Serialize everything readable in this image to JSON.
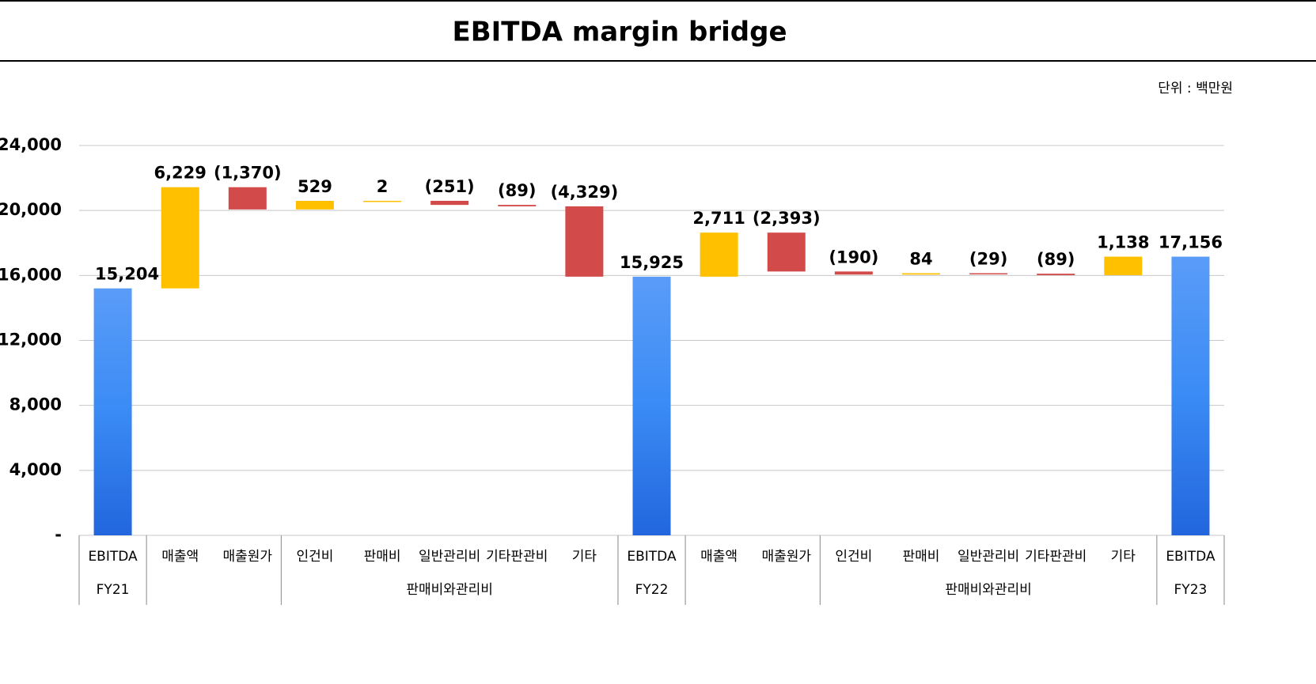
{
  "chart_data": {
    "type": "waterfall",
    "title": "EBITDA margin bridge",
    "unit_note": "단위 : 백만원",
    "categories": [
      "EBITDA",
      "매출액",
      "매출원가",
      "인건비",
      "판매비",
      "일반관리비",
      "기타판관비",
      "기타",
      "EBITDA",
      "매출액",
      "매출원가",
      "인건비",
      "판매비",
      "일반관리비",
      "기타판관비",
      "기타",
      "EBITDA"
    ],
    "groups": [
      {
        "label": "FY21",
        "categories": [
          0,
          0
        ]
      },
      {
        "label": null,
        "categories": [
          1,
          2
        ]
      },
      {
        "label": "판매비와관리비",
        "categories": [
          3,
          7
        ]
      },
      {
        "label": "FY22",
        "categories": [
          8,
          8
        ]
      },
      {
        "label": null,
        "categories": [
          9,
          10
        ]
      },
      {
        "label": "판매비와관리비",
        "categories": [
          11,
          15
        ]
      },
      {
        "label": "FY23",
        "categories": [
          16,
          16
        ]
      }
    ],
    "values": [
      15204,
      6229,
      -1370,
      529,
      2,
      -251,
      -89,
      -4329,
      15925,
      2711,
      -2393,
      -190,
      84,
      -29,
      -89,
      1138,
      17156
    ],
    "value_labels": [
      "15,204",
      "6,229",
      "(1,370)",
      "529",
      "2",
      "(251)",
      "(89)",
      "(4,329)",
      "15,925",
      "2,711",
      "(2,393)",
      "(190)",
      "84",
      "(29)",
      "(89)",
      "1,138",
      "17,156"
    ],
    "totals": [
      0,
      8,
      16
    ],
    "colors": {
      "total": "#3a8bf5",
      "increase": "#ffc000",
      "decrease": "#d34a4a"
    },
    "ylim": [
      0,
      24000
    ],
    "yticks": [
      {
        "value": 0,
        "label": "-"
      },
      {
        "value": 4000,
        "label": "4,000"
      },
      {
        "value": 8000,
        "label": "8,000"
      },
      {
        "value": 12000,
        "label": "12,000"
      },
      {
        "value": 16000,
        "label": "16,000"
      },
      {
        "value": 20000,
        "label": "20,000"
      },
      {
        "value": 24000,
        "label": "24,000"
      }
    ],
    "grid": true
  }
}
